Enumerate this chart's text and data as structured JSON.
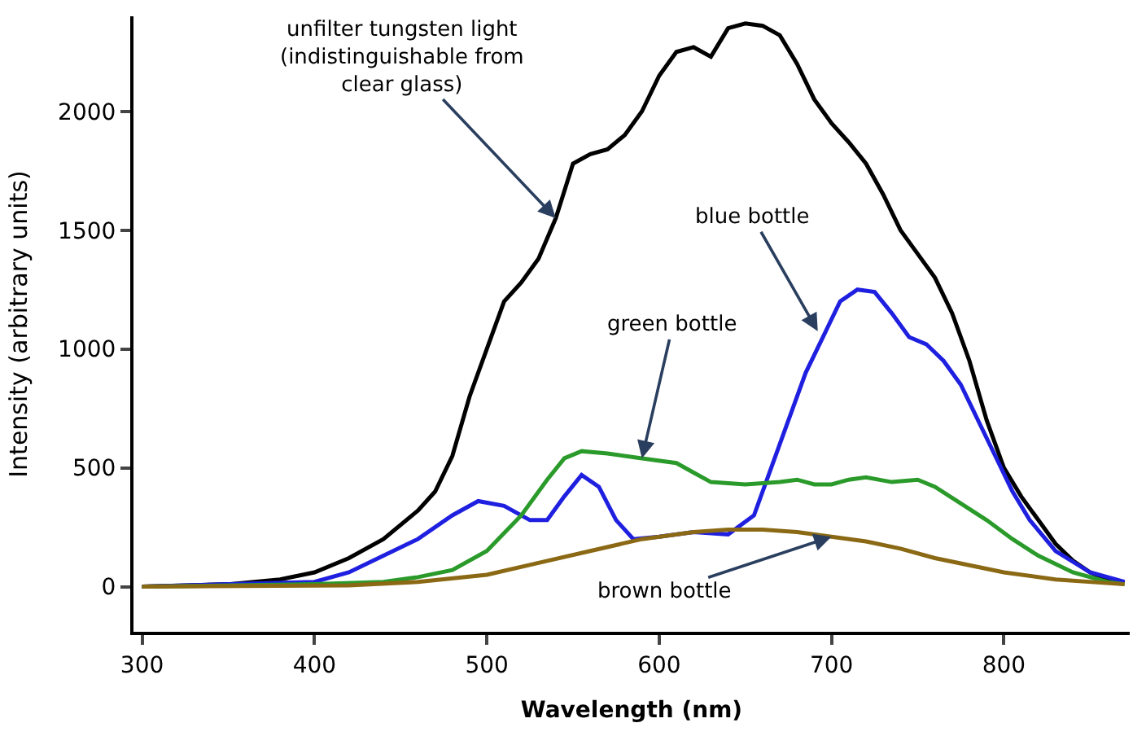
{
  "chart_data": {
    "type": "line",
    "xlabel": "Wavelength (nm)",
    "ylabel": "Intensity (arbitrary units)",
    "xlim": [
      295,
      873
    ],
    "ylim": [
      -190,
      2400
    ],
    "xticks": [
      300,
      400,
      500,
      600,
      700,
      800
    ],
    "yticks": [
      0,
      500,
      1000,
      1500,
      2000
    ],
    "marker": "none",
    "line_style": "solid",
    "series": [
      {
        "color": "#000000",
        "x": [
          300,
          350,
          380,
          400,
          420,
          440,
          460,
          470,
          480,
          490,
          500,
          510,
          520,
          530,
          540,
          550,
          560,
          570,
          580,
          590,
          600,
          610,
          620,
          630,
          640,
          650,
          660,
          670,
          680,
          690,
          700,
          710,
          720,
          730,
          740,
          750,
          760,
          770,
          780,
          790,
          800,
          810,
          820,
          830,
          840,
          850,
          860,
          870
        ],
        "values": [
          0,
          10,
          30,
          60,
          120,
          200,
          320,
          400,
          550,
          800,
          1000,
          1200,
          1280,
          1380,
          1550,
          1780,
          1820,
          1840,
          1900,
          2000,
          2150,
          2250,
          2270,
          2230,
          2350,
          2370,
          2360,
          2320,
          2200,
          2050,
          1950,
          1870,
          1780,
          1650,
          1500,
          1400,
          1300,
          1150,
          950,
          700,
          500,
          380,
          280,
          180,
          110,
          60,
          30,
          15
        ]
      },
      {
        "color": "#1f1fe0",
        "x": [
          300,
          400,
          420,
          440,
          460,
          480,
          495,
          510,
          525,
          535,
          545,
          555,
          565,
          575,
          585,
          600,
          620,
          640,
          655,
          665,
          675,
          685,
          695,
          705,
          715,
          725,
          735,
          745,
          755,
          765,
          775,
          785,
          795,
          805,
          815,
          830,
          850,
          870
        ],
        "values": [
          0,
          20,
          60,
          130,
          200,
          300,
          360,
          340,
          280,
          280,
          380,
          470,
          420,
          280,
          200,
          210,
          230,
          220,
          300,
          500,
          700,
          900,
          1050,
          1200,
          1250,
          1240,
          1150,
          1050,
          1020,
          950,
          850,
          700,
          550,
          400,
          280,
          150,
          60,
          20
        ]
      },
      {
        "color": "#2a9a2a",
        "x": [
          300,
          400,
          440,
          460,
          480,
          500,
          520,
          535,
          545,
          555,
          570,
          590,
          610,
          620,
          630,
          650,
          670,
          680,
          690,
          700,
          710,
          720,
          735,
          750,
          760,
          775,
          790,
          805,
          820,
          840,
          860,
          870
        ],
        "values": [
          0,
          10,
          20,
          40,
          70,
          150,
          300,
          450,
          540,
          570,
          560,
          540,
          520,
          480,
          440,
          430,
          440,
          450,
          430,
          430,
          450,
          460,
          440,
          450,
          420,
          350,
          280,
          200,
          130,
          60,
          20,
          10
        ]
      },
      {
        "color": "#8b6914",
        "x": [
          300,
          420,
          460,
          500,
          530,
          560,
          590,
          620,
          640,
          660,
          680,
          700,
          720,
          740,
          760,
          780,
          800,
          830,
          870
        ],
        "values": [
          0,
          5,
          20,
          50,
          100,
          150,
          200,
          230,
          240,
          240,
          230,
          210,
          190,
          160,
          120,
          90,
          60,
          30,
          10
        ]
      }
    ],
    "annotations": [
      {
        "text": "unfilter tungsten light\n(indistinguishable from\nclear glass)",
        "x": 540,
        "y": 1550
      },
      {
        "text": "blue bottle",
        "x": 692,
        "y": 1075
      },
      {
        "text": "green bottle",
        "x": 590,
        "y": 540
      },
      {
        "text": "brown bottle",
        "x": 700,
        "y": 210
      }
    ]
  }
}
